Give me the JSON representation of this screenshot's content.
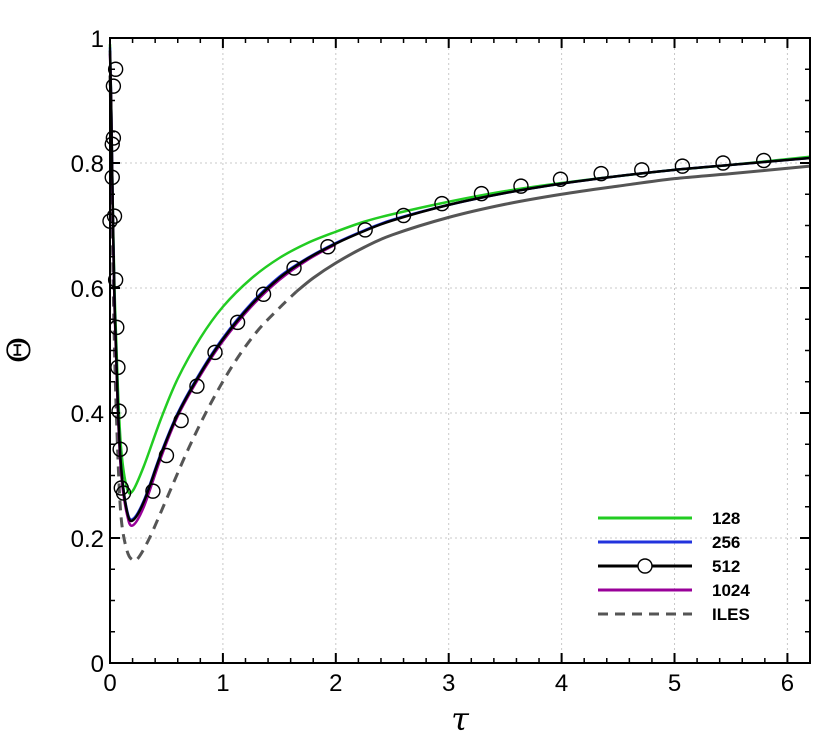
{
  "chart_data": {
    "type": "line",
    "title": "",
    "xlabel": "τ",
    "ylabel": "Θ",
    "xlim": [
      0,
      6.2
    ],
    "ylim": [
      0,
      1
    ],
    "xticks": [
      "0",
      "1",
      "2",
      "3",
      "4",
      "5",
      "6"
    ],
    "yticks": [
      "0",
      "0.2",
      "0.4",
      "0.6",
      "0.8",
      "1"
    ],
    "grid": true,
    "legend": "bottom-right",
    "series": [
      {
        "name": "128",
        "color": "#22cc22",
        "style": "solid",
        "x": [
          0.0,
          0.01,
          0.02,
          0.04,
          0.07,
          0.1,
          0.15,
          0.2,
          0.3,
          0.45,
          0.6,
          0.8,
          1.0,
          1.25,
          1.5,
          1.75,
          2.0,
          2.25,
          2.5,
          3.0,
          3.5,
          4.0,
          4.5,
          5.0,
          5.5,
          6.2
        ],
        "y": [
          0.99,
          0.9,
          0.78,
          0.6,
          0.44,
          0.34,
          0.28,
          0.275,
          0.315,
          0.39,
          0.455,
          0.52,
          0.57,
          0.615,
          0.648,
          0.672,
          0.69,
          0.706,
          0.718,
          0.738,
          0.755,
          0.768,
          0.779,
          0.789,
          0.797,
          0.81
        ]
      },
      {
        "name": "256",
        "color": "#2233dd",
        "style": "solid",
        "x": [
          0.0,
          0.01,
          0.02,
          0.04,
          0.07,
          0.1,
          0.15,
          0.2,
          0.3,
          0.45,
          0.6,
          0.8,
          1.0,
          1.25,
          1.5,
          1.75,
          2.0,
          2.25,
          2.5,
          3.0,
          3.5,
          4.0,
          4.5,
          5.0,
          5.5,
          6.2
        ],
        "y": [
          0.985,
          0.9,
          0.78,
          0.58,
          0.41,
          0.31,
          0.245,
          0.23,
          0.26,
          0.335,
          0.4,
          0.465,
          0.52,
          0.575,
          0.618,
          0.648,
          0.672,
          0.692,
          0.709,
          0.733,
          0.752,
          0.767,
          0.779,
          0.789,
          0.797,
          0.808
        ]
      },
      {
        "name": "512",
        "color": "#000000",
        "style": "solid",
        "marker": "circle",
        "x": [
          0.0,
          0.01,
          0.02,
          0.04,
          0.07,
          0.1,
          0.15,
          0.2,
          0.3,
          0.45,
          0.6,
          0.8,
          1.0,
          1.25,
          1.5,
          1.75,
          2.0,
          2.25,
          2.5,
          3.0,
          3.5,
          4.0,
          4.5,
          5.0,
          5.5,
          6.2
        ],
        "y": [
          0.98,
          0.9,
          0.78,
          0.58,
          0.41,
          0.31,
          0.243,
          0.228,
          0.258,
          0.333,
          0.398,
          0.463,
          0.518,
          0.573,
          0.616,
          0.647,
          0.671,
          0.691,
          0.708,
          0.733,
          0.752,
          0.767,
          0.779,
          0.789,
          0.797,
          0.808
        ],
        "marker_x": [
          0.0,
          0.02,
          0.03,
          0.05,
          0.03,
          0.02,
          0.04,
          0.05,
          0.06,
          0.07,
          0.08,
          0.09,
          0.1,
          0.12,
          0.38,
          0.5,
          0.63,
          0.77,
          0.93,
          1.13,
          1.36,
          1.63,
          1.93,
          2.26,
          2.6,
          2.94,
          3.29,
          3.64,
          3.99,
          4.35,
          4.71,
          5.07,
          5.43,
          5.79
        ],
        "marker_y": [
          0.707,
          0.83,
          0.923,
          0.95,
          0.84,
          0.777,
          0.715,
          0.613,
          0.537,
          0.473,
          0.403,
          0.342,
          0.28,
          0.272,
          0.275,
          0.332,
          0.388,
          0.443,
          0.497,
          0.545,
          0.59,
          0.632,
          0.666,
          0.693,
          0.716,
          0.735,
          0.751,
          0.763,
          0.774,
          0.783,
          0.789,
          0.795,
          0.8,
          0.804
        ]
      },
      {
        "name": "1024",
        "color": "#990099",
        "style": "solid",
        "x": [
          0.0,
          0.01,
          0.02,
          0.04,
          0.07,
          0.1,
          0.15,
          0.2,
          0.3,
          0.45,
          0.6,
          0.8,
          1.0,
          1.25,
          1.5,
          1.75,
          2.0
        ],
        "y": [
          0.975,
          0.9,
          0.77,
          0.57,
          0.4,
          0.3,
          0.238,
          0.22,
          0.25,
          0.328,
          0.395,
          0.46,
          0.515,
          0.57,
          0.613,
          0.645,
          0.67
        ]
      },
      {
        "name": "ILES",
        "color": "#555555",
        "style": "dashed",
        "solid_from": 1.65,
        "x": [
          0.0,
          0.01,
          0.02,
          0.04,
          0.07,
          0.1,
          0.15,
          0.2,
          0.25,
          0.35,
          0.5,
          0.7,
          0.9,
          1.1,
          1.3,
          1.5,
          1.65,
          1.8,
          2.0,
          2.25,
          2.5,
          3.0,
          3.5,
          4.0,
          4.5,
          5.0,
          5.5,
          6.2
        ],
        "y": [
          0.94,
          0.85,
          0.7,
          0.5,
          0.33,
          0.23,
          0.18,
          0.165,
          0.168,
          0.2,
          0.262,
          0.345,
          0.418,
          0.48,
          0.53,
          0.568,
          0.594,
          0.616,
          0.64,
          0.665,
          0.685,
          0.713,
          0.734,
          0.75,
          0.763,
          0.775,
          0.783,
          0.795
        ]
      }
    ]
  }
}
